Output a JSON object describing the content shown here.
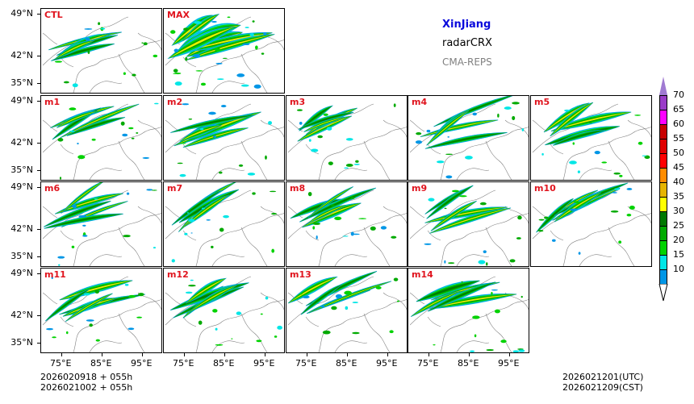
{
  "panels": [
    {
      "label": "CTL",
      "row": 0,
      "col": 0
    },
    {
      "label": "MAX",
      "row": 0,
      "col": 1
    },
    {
      "label": "m1",
      "row": 1,
      "col": 0
    },
    {
      "label": "m2",
      "row": 1,
      "col": 1
    },
    {
      "label": "m3",
      "row": 1,
      "col": 2
    },
    {
      "label": "m4",
      "row": 1,
      "col": 3
    },
    {
      "label": "m5",
      "row": 1,
      "col": 4
    },
    {
      "label": "m6",
      "row": 2,
      "col": 0
    },
    {
      "label": "m7",
      "row": 2,
      "col": 1
    },
    {
      "label": "m8",
      "row": 2,
      "col": 2
    },
    {
      "label": "m9",
      "row": 2,
      "col": 3
    },
    {
      "label": "m10",
      "row": 2,
      "col": 4
    },
    {
      "label": "m11",
      "row": 3,
      "col": 0
    },
    {
      "label": "m12",
      "row": 3,
      "col": 1
    },
    {
      "label": "m13",
      "row": 3,
      "col": 2
    },
    {
      "label": "m14",
      "row": 3,
      "col": 3
    }
  ],
  "axes": {
    "lat_labels": [
      "49°N",
      "42°N",
      "35°N"
    ],
    "lon_labels": [
      "75°E",
      "85°E",
      "95°E"
    ]
  },
  "info": {
    "region": "XinJiang",
    "product": "radarCRX",
    "system": "CMA-REPS",
    "region_color": "#0a0adc",
    "system_color": "#808080"
  },
  "init_times": {
    "utc": "2026020918  +  055h",
    "cst": "2026021002  +  055h"
  },
  "valid_times": {
    "utc": "2026021201(UTC)",
    "cst": "2026021209(CST)"
  },
  "colorbar": {
    "levels": [
      "70",
      "65",
      "60",
      "55",
      "50",
      "45",
      "40",
      "35",
      "30",
      "25",
      "20",
      "15",
      "10"
    ],
    "colors": [
      "#9a3cc8",
      "#ff00ff",
      "#c80000",
      "#e00000",
      "#ff0000",
      "#ff8c00",
      "#e6b400",
      "#ffff00",
      "#007800",
      "#00aa00",
      "#00d200",
      "#00e6e6",
      "#0096e6"
    ],
    "over_color": "#a07ad2"
  }
}
